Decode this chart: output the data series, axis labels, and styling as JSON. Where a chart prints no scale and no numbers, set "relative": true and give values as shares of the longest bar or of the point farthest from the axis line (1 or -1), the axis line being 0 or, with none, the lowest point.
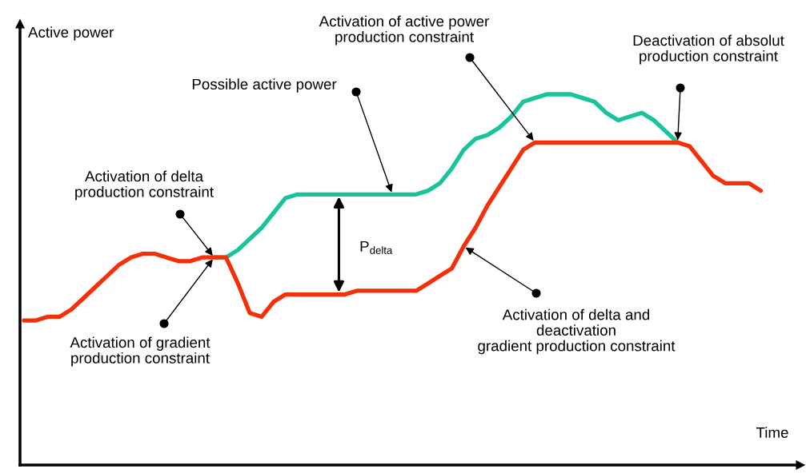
{
  "chart_data": {
    "type": "line",
    "relative": true,
    "xlabel": "Time",
    "ylabel": "Active power",
    "categories": [
      null,
      null,
      null,
      null,
      null,
      null,
      null,
      null,
      null,
      null,
      null,
      null,
      null,
      null,
      null,
      null,
      null,
      null,
      null,
      null,
      null,
      null,
      null,
      null,
      null,
      null,
      null,
      null,
      null,
      null,
      null,
      null,
      null,
      null,
      null,
      null,
      null,
      null,
      null,
      null,
      null,
      null,
      null,
      null,
      null,
      null,
      null,
      null,
      null,
      null,
      null,
      null,
      null,
      null,
      null,
      null,
      null,
      null,
      null,
      null,
      null,
      null,
      null
    ],
    "series": [
      {
        "color": "#19c39b",
        "values": [
          null,
          null,
          null,
          null,
          null,
          null,
          null,
          null,
          null,
          null,
          null,
          null,
          null,
          null,
          null,
          null,
          0.56,
          0.56,
          0.58,
          0.61,
          0.64,
          0.68,
          0.72,
          0.73,
          0.73,
          0.73,
          0.73,
          0.73,
          0.73,
          0.73,
          0.73,
          0.73,
          0.73,
          0.73,
          0.74,
          0.76,
          0.8,
          0.85,
          0.88,
          0.89,
          0.91,
          0.94,
          0.98,
          0.99,
          1.0,
          1.0,
          1.0,
          0.99,
          0.98,
          0.95,
          0.93,
          0.94,
          0.95,
          0.93,
          0.9,
          0.87,
          null,
          null,
          null,
          null,
          null,
          null,
          null
        ]
      },
      {
        "color": "#f4300a",
        "values": [
          0.39,
          0.39,
          0.4,
          0.4,
          0.42,
          0.45,
          0.48,
          0.51,
          0.54,
          0.56,
          0.57,
          0.57,
          0.56,
          0.55,
          0.55,
          0.56,
          0.56,
          0.56,
          0.49,
          0.41,
          0.4,
          0.44,
          0.46,
          0.46,
          0.46,
          0.46,
          0.46,
          0.46,
          0.47,
          0.47,
          0.47,
          0.47,
          0.47,
          0.47,
          0.49,
          0.51,
          0.53,
          0.59,
          0.64,
          0.7,
          0.75,
          0.8,
          0.85,
          0.87,
          0.87,
          0.87,
          0.87,
          0.87,
          0.87,
          0.87,
          0.87,
          0.87,
          0.87,
          0.87,
          0.87,
          0.87,
          0.86,
          0.82,
          0.78,
          0.76,
          0.76,
          0.76,
          0.74
        ]
      }
    ],
    "annotations": [
      "Possible active power",
      "Activation of delta\nproduction constraint",
      "Activation of gradient\nproduction constraint",
      "P$_{delta}$",
      "Activation of active power\nproduction constraint",
      "Deactivation of absolut\nproduction constraint",
      "Activation of delta and\ndeactivation\ngradient production constraint"
    ]
  }
}
